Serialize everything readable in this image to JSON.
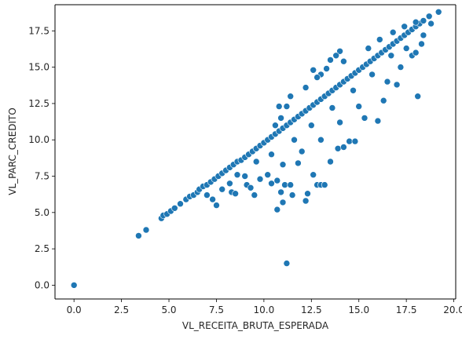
{
  "chart_data": {
    "type": "scatter",
    "title": "",
    "xlabel": "VL_RECEITA_BRUTA_ESPERADA",
    "ylabel": "VL_PARC_CREDITO",
    "xlim": [
      -1.0,
      20.1
    ],
    "ylim": [
      -0.95,
      19.3
    ],
    "xticks": [
      "0.0",
      "2.5",
      "5.0",
      "7.5",
      "10.0",
      "12.5",
      "15.0",
      "17.5",
      "20.0"
    ],
    "xtick_values": [
      0.0,
      2.5,
      5.0,
      7.5,
      10.0,
      12.5,
      15.0,
      17.5,
      20.0
    ],
    "yticks": [
      "0.0",
      "2.5",
      "5.0",
      "7.5",
      "10.0",
      "12.5",
      "15.0",
      "17.5"
    ],
    "ytick_values": [
      0.0,
      2.5,
      5.0,
      7.5,
      10.0,
      12.5,
      15.0,
      17.5
    ],
    "marker_color": "#1f77b4",
    "marker_edge_color": "#ffffff",
    "grid": false,
    "points": [
      [
        0.0,
        0.0
      ],
      [
        3.4,
        3.4
      ],
      [
        3.8,
        3.8
      ],
      [
        4.6,
        4.6
      ],
      [
        4.7,
        4.8
      ],
      [
        4.9,
        4.9
      ],
      [
        5.1,
        5.1
      ],
      [
        5.3,
        5.3
      ],
      [
        5.6,
        5.6
      ],
      [
        5.9,
        5.9
      ],
      [
        6.1,
        6.1
      ],
      [
        6.3,
        6.2
      ],
      [
        6.5,
        6.4
      ],
      [
        6.6,
        6.6
      ],
      [
        6.8,
        6.8
      ],
      [
        7.0,
        6.9
      ],
      [
        7.2,
        7.1
      ],
      [
        7.4,
        7.3
      ],
      [
        7.6,
        7.5
      ],
      [
        7.8,
        7.7
      ],
      [
        8.0,
        7.9
      ],
      [
        8.2,
        8.1
      ],
      [
        8.4,
        8.3
      ],
      [
        8.6,
        8.5
      ],
      [
        8.8,
        8.6
      ],
      [
        9.0,
        8.8
      ],
      [
        9.2,
        9.0
      ],
      [
        9.4,
        9.2
      ],
      [
        9.6,
        9.4
      ],
      [
        9.8,
        9.6
      ],
      [
        10.0,
        9.8
      ],
      [
        10.2,
        10.0
      ],
      [
        10.4,
        10.2
      ],
      [
        10.6,
        10.4
      ],
      [
        10.8,
        10.6
      ],
      [
        11.0,
        10.8
      ],
      [
        11.2,
        11.0
      ],
      [
        11.4,
        11.2
      ],
      [
        11.6,
        11.4
      ],
      [
        11.8,
        11.6
      ],
      [
        12.0,
        11.8
      ],
      [
        12.2,
        12.0
      ],
      [
        12.4,
        12.2
      ],
      [
        12.6,
        12.4
      ],
      [
        12.8,
        12.6
      ],
      [
        13.0,
        12.8
      ],
      [
        13.2,
        13.0
      ],
      [
        13.4,
        13.2
      ],
      [
        13.6,
        13.4
      ],
      [
        13.8,
        13.6
      ],
      [
        14.0,
        13.8
      ],
      [
        14.2,
        14.0
      ],
      [
        14.4,
        14.2
      ],
      [
        14.6,
        14.4
      ],
      [
        14.8,
        14.6
      ],
      [
        15.0,
        14.8
      ],
      [
        15.2,
        15.0
      ],
      [
        15.4,
        15.2
      ],
      [
        15.6,
        15.4
      ],
      [
        15.8,
        15.6
      ],
      [
        16.0,
        15.8
      ],
      [
        16.2,
        16.0
      ],
      [
        16.4,
        16.2
      ],
      [
        16.6,
        16.4
      ],
      [
        16.8,
        16.6
      ],
      [
        17.0,
        16.8
      ],
      [
        17.2,
        17.0
      ],
      [
        17.4,
        17.2
      ],
      [
        17.6,
        17.4
      ],
      [
        17.8,
        17.6
      ],
      [
        18.0,
        17.8
      ],
      [
        18.2,
        18.0
      ],
      [
        18.4,
        18.2
      ],
      [
        18.7,
        18.5
      ],
      [
        19.2,
        18.8
      ],
      [
        7.0,
        6.2
      ],
      [
        7.3,
        5.9
      ],
      [
        7.5,
        5.5
      ],
      [
        7.8,
        6.6
      ],
      [
        8.3,
        6.4
      ],
      [
        8.5,
        6.3
      ],
      [
        9.1,
        6.9
      ],
      [
        9.3,
        6.7
      ],
      [
        9.5,
        6.2
      ],
      [
        9.8,
        7.3
      ],
      [
        10.2,
        7.6
      ],
      [
        10.4,
        7.0
      ],
      [
        10.7,
        7.2
      ],
      [
        10.9,
        6.4
      ],
      [
        10.7,
        5.2
      ],
      [
        11.0,
        5.7
      ],
      [
        11.1,
        6.9
      ],
      [
        11.4,
        6.9
      ],
      [
        11.5,
        6.2
      ],
      [
        11.8,
        8.4
      ],
      [
        12.2,
        5.8
      ],
      [
        12.3,
        6.3
      ],
      [
        12.6,
        7.6
      ],
      [
        12.8,
        6.9
      ],
      [
        13.0,
        6.9
      ],
      [
        13.2,
        6.9
      ],
      [
        13.5,
        8.5
      ],
      [
        13.9,
        9.4
      ],
      [
        14.2,
        9.5
      ],
      [
        14.5,
        9.9
      ],
      [
        14.8,
        9.9
      ],
      [
        15.3,
        11.5
      ],
      [
        16.0,
        11.3
      ],
      [
        16.3,
        12.7
      ],
      [
        17.0,
        13.8
      ],
      [
        17.8,
        15.8
      ],
      [
        18.1,
        13.0
      ],
      [
        11.2,
        1.5
      ],
      [
        10.8,
        12.3
      ],
      [
        11.2,
        12.3
      ],
      [
        10.6,
        11.0
      ],
      [
        10.9,
        11.5
      ],
      [
        11.4,
        13.0
      ],
      [
        12.6,
        14.8
      ],
      [
        13.5,
        15.5
      ],
      [
        14.0,
        16.1
      ],
      [
        13.8,
        15.8
      ],
      [
        14.2,
        15.4
      ],
      [
        13.0,
        14.5
      ],
      [
        12.2,
        13.6
      ],
      [
        12.8,
        14.3
      ],
      [
        13.3,
        14.9
      ],
      [
        15.5,
        16.3
      ],
      [
        16.1,
        16.9
      ],
      [
        16.8,
        17.4
      ],
      [
        17.4,
        17.8
      ],
      [
        18.0,
        18.1
      ],
      [
        18.4,
        17.2
      ],
      [
        18.8,
        18.0
      ],
      [
        17.5,
        16.3
      ],
      [
        16.7,
        15.8
      ],
      [
        15.7,
        14.5
      ],
      [
        14.7,
        13.4
      ],
      [
        13.6,
        12.2
      ],
      [
        12.5,
        11.0
      ],
      [
        11.6,
        10.0
      ],
      [
        10.4,
        9.0
      ],
      [
        9.6,
        8.5
      ],
      [
        8.6,
        7.6
      ],
      [
        8.2,
        7.0
      ],
      [
        9.0,
        7.5
      ],
      [
        11.0,
        8.3
      ],
      [
        12.0,
        9.2
      ],
      [
        13.0,
        10.0
      ],
      [
        14.0,
        11.2
      ],
      [
        15.0,
        12.3
      ],
      [
        16.5,
        14.0
      ],
      [
        17.2,
        15.0
      ],
      [
        18.0,
        16.0
      ],
      [
        18.3,
        16.6
      ]
    ]
  }
}
